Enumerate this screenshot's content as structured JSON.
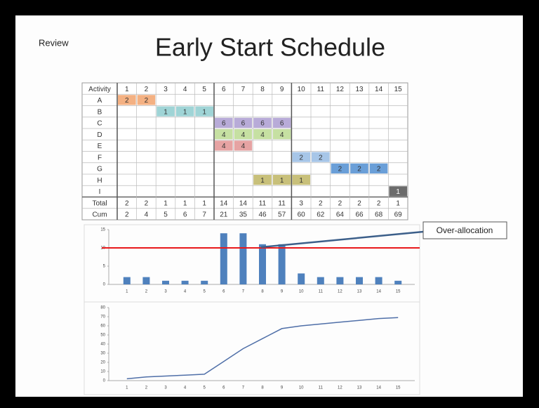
{
  "slide": {
    "label": "Review",
    "title": "Early Start Schedule"
  },
  "table": {
    "header": [
      "Activity",
      1,
      2,
      3,
      4,
      5,
      6,
      7,
      8,
      9,
      10,
      11,
      12,
      13,
      14,
      15
    ],
    "rows": [
      {
        "activity": "A",
        "color": "#f4b183",
        "cells": [
          2,
          2,
          null,
          null,
          null,
          null,
          null,
          null,
          null,
          null,
          null,
          null,
          null,
          null,
          null
        ]
      },
      {
        "activity": "B",
        "color": "#9fd4d6",
        "cells": [
          null,
          null,
          1,
          1,
          1,
          null,
          null,
          null,
          null,
          null,
          null,
          null,
          null,
          null,
          null
        ]
      },
      {
        "activity": "C",
        "color": "#b8abd8",
        "cells": [
          null,
          null,
          null,
          null,
          null,
          6,
          6,
          6,
          6,
          null,
          null,
          null,
          null,
          null,
          null
        ]
      },
      {
        "activity": "D",
        "color": "#c6e0a2",
        "cells": [
          null,
          null,
          null,
          null,
          null,
          4,
          4,
          4,
          4,
          null,
          null,
          null,
          null,
          null,
          null
        ]
      },
      {
        "activity": "E",
        "color": "#e6a3a3",
        "cells": [
          null,
          null,
          null,
          null,
          null,
          4,
          4,
          null,
          null,
          null,
          null,
          null,
          null,
          null,
          null
        ]
      },
      {
        "activity": "F",
        "color": "#a7c6e8",
        "cells": [
          null,
          null,
          null,
          null,
          null,
          null,
          null,
          null,
          null,
          2,
          2,
          null,
          null,
          null,
          null
        ]
      },
      {
        "activity": "G",
        "color": "#6a9fd8",
        "cells": [
          null,
          null,
          null,
          null,
          null,
          null,
          null,
          null,
          null,
          null,
          null,
          2,
          2,
          2,
          null
        ]
      },
      {
        "activity": "H",
        "color": "#c8c07a",
        "cells": [
          null,
          null,
          null,
          null,
          null,
          null,
          null,
          1,
          1,
          1,
          null,
          null,
          null,
          null,
          null
        ]
      },
      {
        "activity": "I",
        "color": "#6b6b6b",
        "cells": [
          null,
          null,
          null,
          null,
          null,
          null,
          null,
          null,
          null,
          null,
          null,
          null,
          null,
          null,
          1
        ]
      }
    ],
    "total": {
      "label": "Total",
      "cells": [
        2,
        2,
        1,
        1,
        1,
        14,
        14,
        11,
        11,
        3,
        2,
        2,
        2,
        2,
        1
      ]
    },
    "cum": {
      "label": "Cum",
      "cells": [
        2,
        4,
        5,
        6,
        7,
        21,
        35,
        46,
        57,
        60,
        62,
        64,
        66,
        68,
        69
      ]
    }
  },
  "chart_data": [
    {
      "type": "bar",
      "color": "#4f81bd",
      "categories": [
        "1",
        "2",
        "3",
        "4",
        "5",
        "6",
        "7",
        "8",
        "9",
        "10",
        "11",
        "12",
        "13",
        "14",
        "15"
      ],
      "values": [
        2,
        2,
        1,
        1,
        1,
        14,
        14,
        11,
        11,
        3,
        2,
        2,
        2,
        2,
        1
      ],
      "ylim": [
        0,
        15
      ],
      "yticks": [
        0,
        5,
        10,
        15
      ],
      "grid": false,
      "reference_line": 10,
      "reference_color": "#e8191b",
      "annotation": "Over-allocation"
    },
    {
      "type": "line",
      "color": "#4f6fa8",
      "categories": [
        "1",
        "2",
        "3",
        "4",
        "5",
        "6",
        "7",
        "8",
        "9",
        "10",
        "11",
        "12",
        "13",
        "14",
        "15"
      ],
      "values": [
        2,
        4,
        5,
        6,
        7,
        21,
        35,
        46,
        57,
        60,
        62,
        64,
        66,
        68,
        69
      ],
      "ylim": [
        0,
        80
      ],
      "yticks": [
        0,
        10,
        20,
        30,
        40,
        50,
        60,
        70,
        80
      ],
      "grid": false
    }
  ]
}
